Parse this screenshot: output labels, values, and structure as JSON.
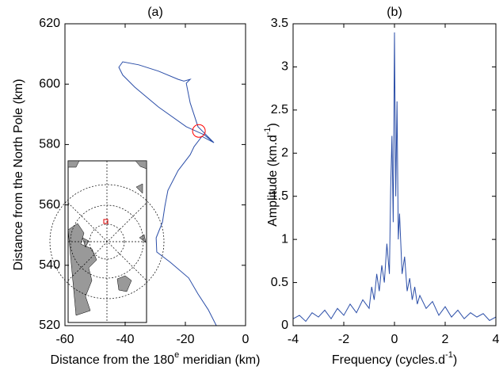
{
  "chart_data": [
    {
      "type": "line",
      "title": "(a)",
      "xlabel": {
        "before": "Distance from the 180",
        "sup": "e",
        "after": " meridian (km)"
      },
      "ylabel": "Distance from the North Pole (km)",
      "xlim": [
        -60,
        0
      ],
      "xticks": [
        -60,
        -40,
        -20,
        0
      ],
      "ylim": [
        520,
        620
      ],
      "yticks": [
        520,
        540,
        560,
        580,
        600,
        620
      ],
      "x": [
        -9.7,
        -12.4,
        -15.8,
        -18.9,
        -25,
        -29.5,
        -29.7,
        -27.6,
        -26.8,
        -25.8,
        -22.4,
        -18.4,
        -17.1,
        -14.5,
        -10.5,
        -15.8,
        -18.4,
        -19.7,
        -18.4,
        -20.5,
        -22.4,
        -28.9,
        -35.5,
        -40.8,
        -42.1,
        -40.8,
        -36.8,
        -28.9,
        -19.7,
        -13.7,
        -10.5
      ],
      "series": [
        {
          "color": "#2b4ea8",
          "values": [
            520,
            525.3,
            530.5,
            535.8,
            541,
            544.4,
            549.1,
            554.3,
            559.6,
            564.8,
            571.4,
            576.6,
            579.3,
            582.7,
            580.6,
            585.9,
            593.8,
            600.3,
            601.6,
            601,
            601.6,
            604.3,
            606.4,
            607.4,
            605.6,
            603,
            599,
            592.4,
            585.9,
            583.2,
            580.6
          ]
        }
      ],
      "marker": {
        "x": -15.5,
        "y": 584.5,
        "color": "#ff0000"
      }
    },
    {
      "type": "line",
      "title": "(b)",
      "xlabel": {
        "before": "Frequency (cycles.d",
        "sup": "-1",
        "after": ")"
      },
      "ylabel": {
        "before": "Amplitude (km.d",
        "sup": "-1",
        "after": ")"
      },
      "xlim": [
        -4,
        4
      ],
      "xticks": [
        -4,
        -2,
        0,
        2,
        4
      ],
      "ylim": [
        0,
        3.5
      ],
      "yticks": [
        0,
        0.5,
        1,
        1.5,
        2,
        2.5,
        3,
        3.5
      ],
      "x": [
        -4,
        -3.75,
        -3.5,
        -3.25,
        -3,
        -2.75,
        -2.5,
        -2.25,
        -2,
        -1.75,
        -1.5,
        -1.25,
        -1,
        -0.9,
        -0.8,
        -0.7,
        -0.6,
        -0.5,
        -0.4,
        -0.3,
        -0.2,
        -0.15,
        -0.1,
        -0.05,
        0,
        0.05,
        0.1,
        0.15,
        0.2,
        0.3,
        0.4,
        0.5,
        0.6,
        0.7,
        0.8,
        0.9,
        1,
        1.25,
        1.5,
        1.75,
        2,
        2.25,
        2.5,
        2.75,
        3,
        3.25,
        3.5,
        3.75,
        4
      ],
      "series": [
        {
          "color": "#2b4ea8",
          "values": [
            0.08,
            0.12,
            0.05,
            0.15,
            0.1,
            0.18,
            0.08,
            0.2,
            0.12,
            0.25,
            0.15,
            0.3,
            0.2,
            0.45,
            0.3,
            0.6,
            0.4,
            0.7,
            0.5,
            0.95,
            0.6,
            1.6,
            2.2,
            1.2,
            3.4,
            1.5,
            2.6,
            1.0,
            1.3,
            0.6,
            0.8,
            0.4,
            0.55,
            0.3,
            0.45,
            0.25,
            0.35,
            0.2,
            0.28,
            0.12,
            0.22,
            0.1,
            0.18,
            0.08,
            0.15,
            0.1,
            0.14,
            0.06,
            0.1
          ]
        }
      ]
    }
  ]
}
